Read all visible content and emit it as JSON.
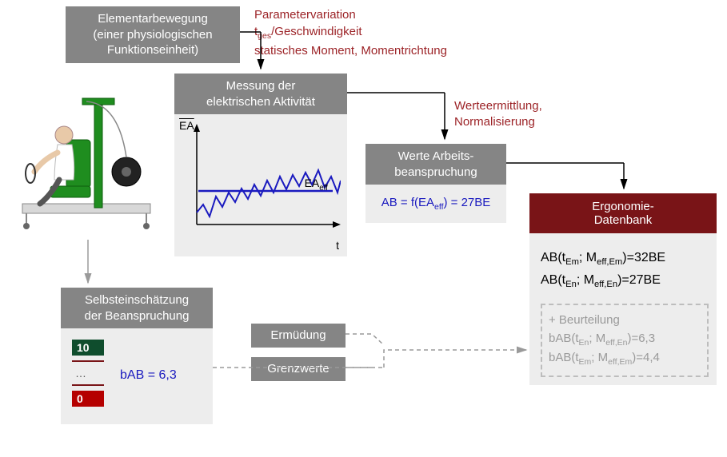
{
  "colors": {
    "gray_header": "#858585",
    "light_body": "#ededed",
    "dark_red": "#791417",
    "red_text": "#9c2327",
    "blue": "#1a1abf",
    "gray_text": "#9a9a9a",
    "black": "#000000",
    "white": "#ffffff",
    "arrow_gray": "#9a9a9a",
    "chip10_bg": "#0f4d2d",
    "chip0_bg": "#b50000",
    "dashed_border": "#bdbdbd",
    "apparatus_green": "#1f8d1f",
    "apparatus_frame": "#d0d0d0",
    "person_skin": "#e8c9a8",
    "person_shirt": "#ffffff"
  },
  "boxes": {
    "element": {
      "l1": "Elementarbewegung",
      "l2": "(einer physiologischen",
      "l3": "Funktionseinheit)"
    },
    "param": {
      "l1": "Parametervariation",
      "l2_pre": "t",
      "l2_sub": "ges",
      "l2_post": "/Geschwindigkeit",
      "l3": "statisches Moment, Momentrichtung"
    },
    "messung": {
      "l1": "Messung der",
      "l2": "elektrischen Aktivität"
    },
    "werteermittlung": {
      "l1": "Werteermittlung,",
      "l2": "Normalisierung"
    },
    "werte": {
      "l1": "Werte Arbeits-",
      "l2": "beanspruchung",
      "formula_pre": "AB = f(EA",
      "formula_sub": "eff",
      "formula_post": ") = 27BE"
    },
    "ergonomie": {
      "l1": "Ergonomie-",
      "l2": "Datenbank"
    },
    "db_rows": {
      "r1_pre": "AB(t",
      "r1_s1": "Em",
      "r1_mid": "; M",
      "r1_s2": "eff,Em",
      "r1_post": ")=32BE",
      "r2_pre": "AB(t",
      "r2_s1": "En",
      "r2_mid": "; M",
      "r2_s2": "eff,En",
      "r2_post": ")=27BE"
    },
    "beurteilung": {
      "title": "+ Beurteilung",
      "r1_pre": "bAB(t",
      "r1_s1": "En",
      "r1_mid": "; M",
      "r1_s2": "eff,En",
      "r1_post": ")=6,3",
      "r2_pre": "bAB(t",
      "r2_s1": "Em",
      "r2_mid": "; M",
      "r2_s2": "eff,Em",
      "r2_post": ")=4,4"
    },
    "selbst": {
      "l1": "Selbsteinschätzung",
      "l2": "der Beanspruchung",
      "bab": "bAB = 6,3"
    },
    "ermuedung": "Ermüdung",
    "grenzwerte": "Grenzwerte",
    "chip10": "10",
    "chipdots": "…",
    "chip0": "0"
  },
  "chart": {
    "y_label_bar": "EA",
    "x_label": "t",
    "ea_eff_pre": "EA",
    "ea_eff_sub": "eff",
    "line_y": 68,
    "series": [
      {
        "x": 0,
        "y": 95
      },
      {
        "x": 8,
        "y": 85
      },
      {
        "x": 16,
        "y": 100
      },
      {
        "x": 24,
        "y": 75
      },
      {
        "x": 32,
        "y": 88
      },
      {
        "x": 40,
        "y": 70
      },
      {
        "x": 48,
        "y": 82
      },
      {
        "x": 56,
        "y": 65
      },
      {
        "x": 64,
        "y": 78
      },
      {
        "x": 72,
        "y": 60
      },
      {
        "x": 80,
        "y": 74
      },
      {
        "x": 88,
        "y": 55
      },
      {
        "x": 96,
        "y": 70
      },
      {
        "x": 104,
        "y": 50
      },
      {
        "x": 112,
        "y": 66
      },
      {
        "x": 120,
        "y": 48
      },
      {
        "x": 128,
        "y": 62
      },
      {
        "x": 136,
        "y": 45
      },
      {
        "x": 144,
        "y": 60
      },
      {
        "x": 152,
        "y": 42
      },
      {
        "x": 160,
        "y": 64
      },
      {
        "x": 168,
        "y": 50
      },
      {
        "x": 176,
        "y": 70
      },
      {
        "x": 180,
        "y": 55
      }
    ]
  }
}
